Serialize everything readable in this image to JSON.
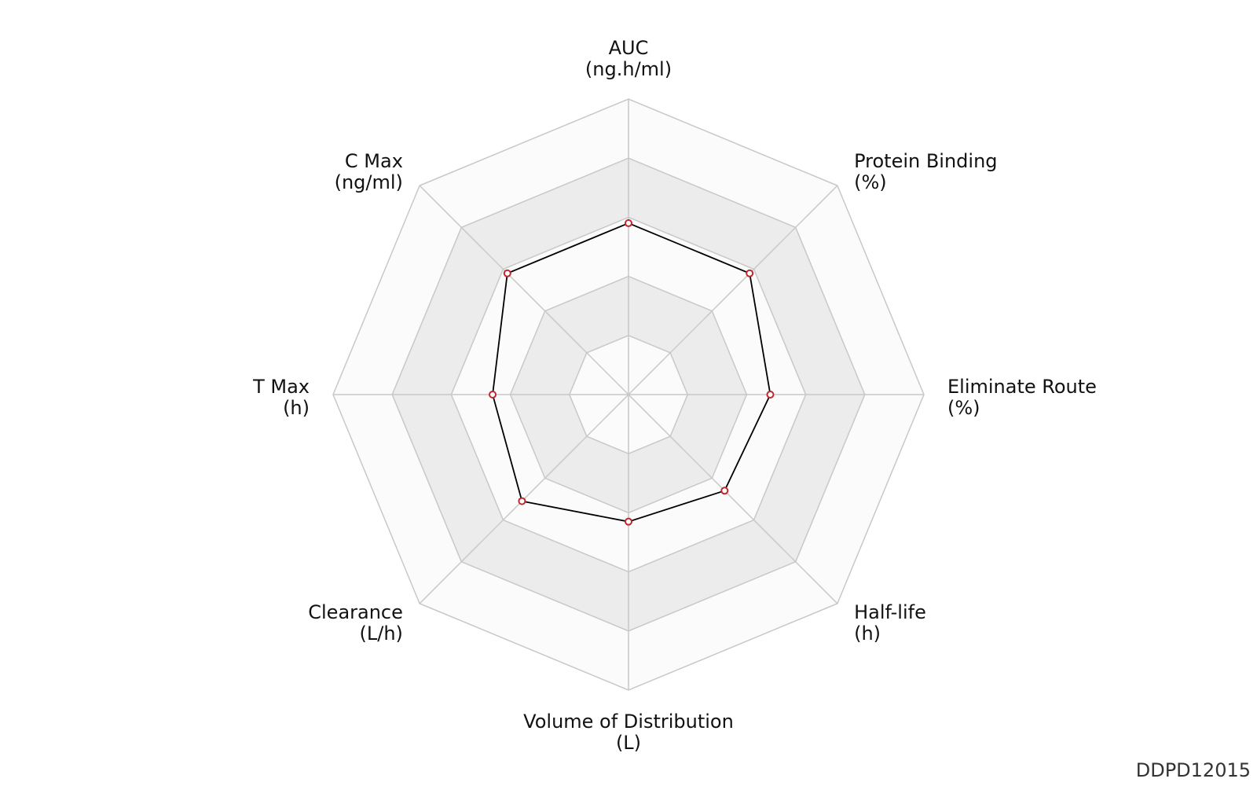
{
  "chart_data": {
    "type": "radar",
    "axes": [
      {
        "name": "AUC",
        "unit": "(ng.h/ml)"
      },
      {
        "name": "Protein Binding",
        "unit": "(%)"
      },
      {
        "name": "Eliminate Route",
        "unit": "(%)"
      },
      {
        "name": "Half-life",
        "unit": "(h)"
      },
      {
        "name": "Volume of Distribution",
        "unit": "(L)"
      },
      {
        "name": "Clearance",
        "unit": "(L/h)"
      },
      {
        "name": "T Max",
        "unit": "(h)"
      },
      {
        "name": "C Max",
        "unit": "(ng/ml)"
      }
    ],
    "values": [
      0.58,
      0.58,
      0.48,
      0.46,
      0.43,
      0.51,
      0.46,
      0.58
    ],
    "rings": 5,
    "range": [
      0,
      1
    ],
    "colors": {
      "band_light": "#fbfbfb",
      "band_dark": "#ececec",
      "grid": "#c8c8c8",
      "series_line": "#000000",
      "marker_stroke": "#c0282d",
      "marker_fill": "#ffffff"
    }
  },
  "watermark": "DDPD12015"
}
